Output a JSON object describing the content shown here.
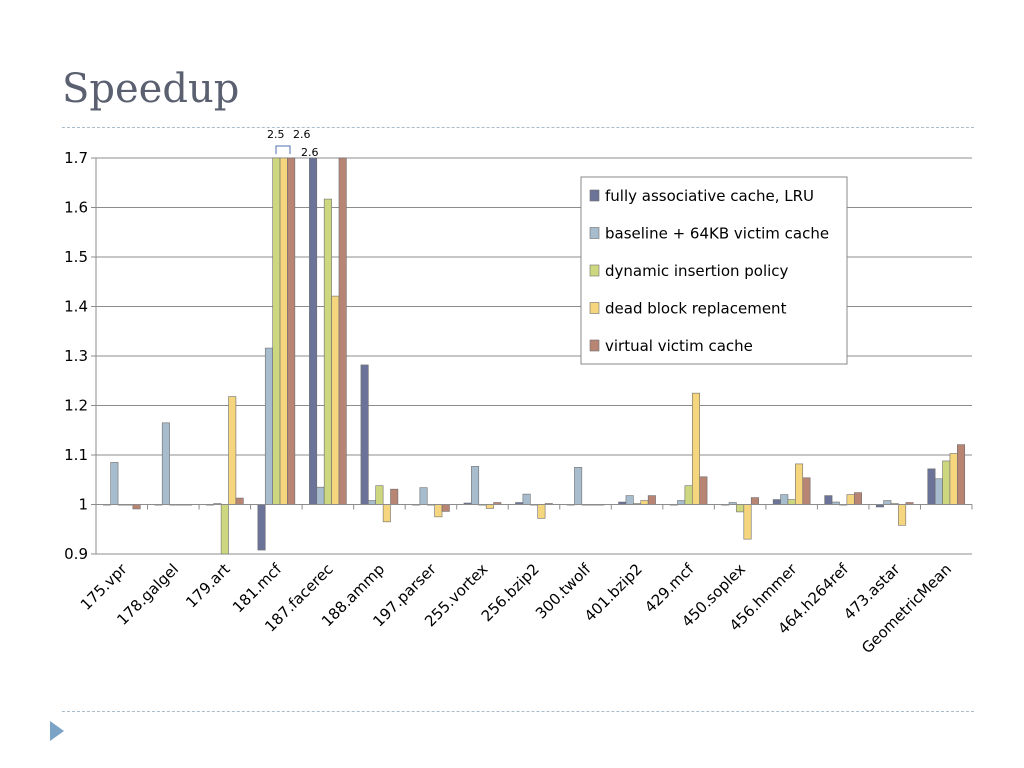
{
  "title": "Speedup",
  "chart_data": {
    "type": "bar",
    "categories": [
      "175.vpr",
      "178.galgel",
      "179.art",
      "181.mcf",
      "187.facerec",
      "188.ammp",
      "197.parser",
      "255.vortex",
      "256.bzip2",
      "300.twolf",
      "401.bzip2",
      "429.mcf",
      "450.soplex",
      "456.hmmer",
      "464.h264ref",
      "473.astar",
      "GeometricMean"
    ],
    "series": [
      {
        "name": "fully associative cache, LRU",
        "color": "#6b7399",
        "values": [
          1.0,
          1.0,
          1.0,
          0.908,
          1.7,
          1.282,
          1.0,
          1.003,
          1.004,
          1.0,
          1.005,
          1.0,
          1.0,
          1.01,
          1.018,
          0.995,
          1.072
        ]
      },
      {
        "name": "baseline + 64KB victim cache",
        "color": "#a7bccd",
        "values": [
          1.085,
          1.165,
          1.002,
          1.316,
          1.035,
          1.008,
          1.034,
          1.077,
          1.021,
          1.075,
          1.018,
          1.008,
          1.004,
          1.02,
          1.005,
          1.008,
          1.052
        ]
      },
      {
        "name": "dynamic insertion policy",
        "color": "#cdd77f",
        "values": [
          1.0,
          0.999,
          0.9,
          1.7,
          1.617,
          1.038,
          1.0,
          1.0,
          1.0,
          1.0,
          1.002,
          1.038,
          0.985,
          1.01,
          1.0,
          1.002,
          1.088
        ]
      },
      {
        "name": "dead block replacement",
        "color": "#f5d57e",
        "values": [
          1.0,
          1.0,
          1.218,
          1.7,
          1.421,
          0.965,
          0.975,
          0.992,
          0.972,
          1.0,
          1.008,
          1.225,
          0.93,
          1.082,
          1.02,
          0.958,
          1.103
        ]
      },
      {
        "name": "virtual victim cache",
        "color": "#b88574",
        "values": [
          0.991,
          1.0,
          1.013,
          1.7,
          1.7,
          1.031,
          0.986,
          1.004,
          1.002,
          1.0,
          1.018,
          1.056,
          1.014,
          1.054,
          1.024,
          1.004,
          1.121
        ]
      }
    ],
    "ylim": [
      0.9,
      1.7
    ],
    "yticks": [
      "0.9",
      "1",
      "1.1",
      "1.2",
      "1.3",
      "1.4",
      "1.5",
      "1.6",
      "1.7"
    ],
    "grid": true,
    "legend_position": "top-right",
    "annotations": [
      "2.5",
      "2.6",
      "2.6"
    ]
  }
}
